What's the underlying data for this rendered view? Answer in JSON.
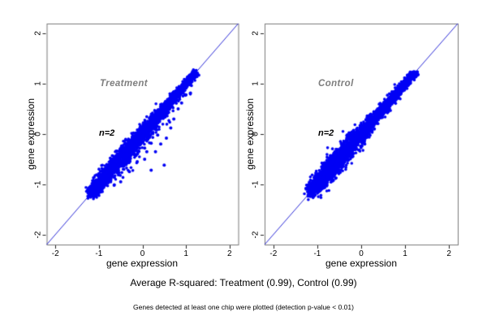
{
  "chart_data": {
    "type": "scatter",
    "title": "",
    "caption": "Average R-squared: Treatment (0.99), Control (0.99)",
    "footnote": "Genes detected at least one chip were plotted (detection p-value < 0.01)",
    "xlim": [
      -2.2,
      2.2
    ],
    "ylim": [
      -2.2,
      2.2
    ],
    "x_ticks": [
      -2,
      -1,
      0,
      1,
      2
    ],
    "y_ticks": [
      -2,
      -1,
      0,
      1,
      2
    ],
    "grid": false,
    "point_color": "#0000f5",
    "identity_line_color": "#2a2ad6",
    "axis_box_color": "#7a7a7a",
    "tick_color": "#222222",
    "label_gray": "#7e7e7e",
    "r_squared": {
      "Treatment": 0.99,
      "Control": 0.99
    },
    "panels": [
      {
        "label": "Treatment",
        "annotation": "n=2",
        "xlabel": "gene expression",
        "ylabel": "gene expression",
        "identity_line": true,
        "cloud": {
          "seed": 12,
          "n": 3000,
          "t_min": -1.17,
          "t_max": 1.23,
          "skew": 1.3,
          "sd_base": 0.032,
          "sd_bulge": 0.05,
          "bulge_center": -0.4,
          "bulge_width": 0.6,
          "tail": {
            "prob": 0.055,
            "scale": 0.16,
            "min_offset": 0.04,
            "t_min": -0.6,
            "t_max": 1.1,
            "symmetric": false
          }
        },
        "outliers": [
          [
            -0.5,
            -0.95
          ],
          [
            -0.65,
            -1.02
          ],
          [
            -0.3,
            -0.75
          ],
          [
            -0.12,
            -0.55
          ],
          [
            0.05,
            -0.5
          ],
          [
            0.2,
            -0.72
          ],
          [
            0.5,
            -0.62
          ],
          [
            0.3,
            -0.35
          ],
          [
            0.42,
            -0.2
          ],
          [
            0.55,
            -0.08
          ],
          [
            0.65,
            0.12
          ],
          [
            0.72,
            0.3
          ],
          [
            0.2,
            -0.18
          ],
          [
            0.05,
            -0.28
          ],
          [
            -0.15,
            -0.42
          ],
          [
            0.82,
            0.5
          ],
          [
            0.35,
            -0.02
          ],
          [
            0.1,
            -0.35
          ],
          [
            0.9,
            0.62
          ],
          [
            1.0,
            0.78
          ]
        ]
      },
      {
        "label": "Control",
        "annotation": "n=2",
        "xlabel": "gene expression",
        "ylabel": "gene expression",
        "identity_line": true,
        "cloud": {
          "seed": 77,
          "n": 3000,
          "t_min": -1.13,
          "t_max": 1.21,
          "skew": 1.25,
          "sd_base": 0.038,
          "sd_bulge": 0.055,
          "bulge_center": -0.5,
          "bulge_width": 0.55,
          "tail": {
            "prob": 0.02,
            "scale": 0.07,
            "min_offset": 0.03,
            "t_min": -1.1,
            "t_max": 0.6,
            "symmetric": true
          }
        },
        "outliers": [
          [
            -0.62,
            -0.38
          ],
          [
            -0.45,
            -0.2
          ],
          [
            -0.3,
            -0.52
          ],
          [
            0.08,
            -0.2
          ],
          [
            -0.78,
            -0.52
          ],
          [
            -0.25,
            0.02
          ],
          [
            -0.5,
            -0.74
          ],
          [
            -0.05,
            -0.32
          ],
          [
            0.3,
            0.1
          ],
          [
            -0.9,
            -0.65
          ]
        ]
      }
    ]
  }
}
